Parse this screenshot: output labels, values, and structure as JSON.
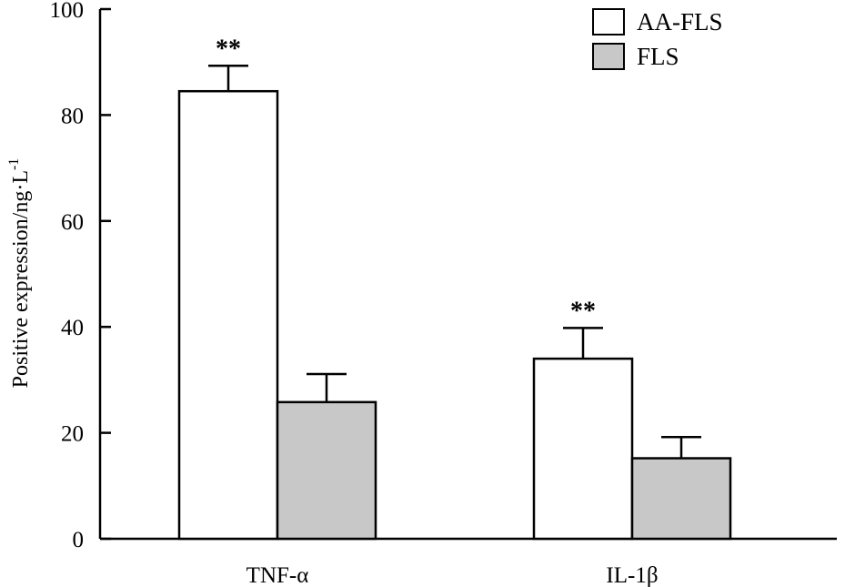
{
  "chart_data": {
    "type": "bar",
    "title": "",
    "xlabel": "",
    "ylabel": "Positive expression/ng·L",
    "ylabel_superscript": "-1",
    "ylim": [
      0,
      100
    ],
    "yticks": [
      "0",
      "20",
      "40",
      "60",
      "80",
      "100"
    ],
    "categories": [
      "TNF-α",
      "IL-1β"
    ],
    "series": [
      {
        "name": "AA-FLS",
        "values": [
          84.5,
          34.0
        ],
        "errors": [
          4.8,
          5.8
        ],
        "color": "#ffffff",
        "significance": [
          "**",
          "**"
        ]
      },
      {
        "name": "FLS",
        "values": [
          25.8,
          15.2
        ],
        "errors": [
          5.3,
          4.0
        ],
        "color": "#c8c8c8",
        "significance": [
          "",
          ""
        ]
      }
    ],
    "grid": false,
    "legend_position": "top-right"
  }
}
